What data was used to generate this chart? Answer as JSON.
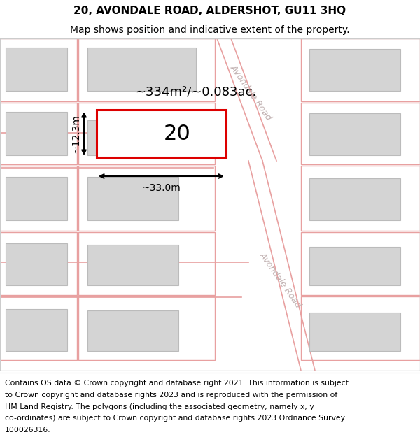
{
  "title_line1": "20, AVONDALE ROAD, ALDERSHOT, GU11 3HQ",
  "title_line2": "Map shows position and indicative extent of the property.",
  "footer_lines": [
    "Contains OS data © Crown copyright and database right 2021. This information is subject",
    "to Crown copyright and database rights 2023 and is reproduced with the permission of",
    "HM Land Registry. The polygons (including the associated geometry, namely x, y",
    "co-ordinates) are subject to Crown copyright and database rights 2023 Ordnance Survey",
    "100026316."
  ],
  "map_bg": "#ffffff",
  "plot_line_color": "#e8a0a0",
  "building_fill": "#d4d4d4",
  "building_edge": "#bbbbbb",
  "highlight_fill": "#ffffff",
  "highlight_edge": "#dd0000",
  "road_label_color": "#c0b0b0",
  "road_label": "Avondale Road",
  "property_label": "20",
  "area_label": "~334m²/~0.083ac.",
  "width_label": "~33.0m",
  "height_label": "~12.3m",
  "title_fontsize": 11,
  "subtitle_fontsize": 10,
  "footer_fontsize": 7.8,
  "map_border_color": "#cccccc"
}
